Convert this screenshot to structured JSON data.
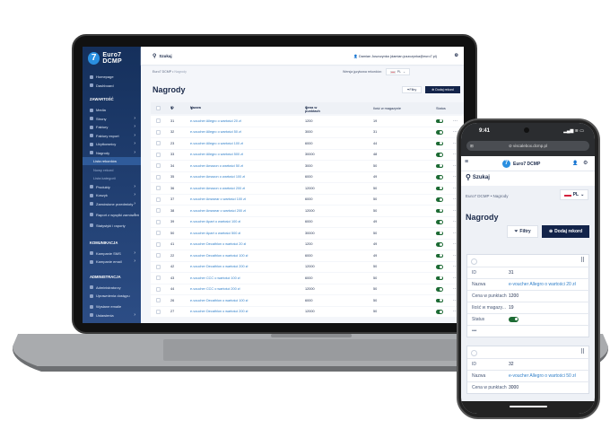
{
  "app": {
    "name": "Euro7 DCMP"
  },
  "sidebar": {
    "top": [
      {
        "label": "Homepage"
      },
      {
        "label": "Dashboard"
      }
    ],
    "sections": [
      {
        "title": "ZAWARTOŚĆ",
        "items": [
          {
            "label": "Media",
            "chevron": false
          },
          {
            "label": "Strony",
            "chevron": true
          },
          {
            "label": "Faktury",
            "chevron": true
          },
          {
            "label": "Faktury export",
            "chevron": true
          },
          {
            "label": "Użytkownicy",
            "chevron": true
          },
          {
            "label": "Nagrody",
            "chevron": true,
            "expanded": true,
            "children": [
              {
                "label": "Lista rekordów",
                "active": true
              },
              {
                "label": "Nowy rekord"
              },
              {
                "label": "Lista kategorii"
              }
            ]
          },
          {
            "label": "Produkty",
            "chevron": true
          },
          {
            "label": "Koszyk",
            "chevron": true
          },
          {
            "label": "Zamówione przedmioty",
            "chevron": true
          },
          {
            "label": "Raport z wysyłki zamówień",
            "chevron": true
          },
          {
            "label": "Statystyki i raporty",
            "chevron": false
          }
        ]
      },
      {
        "title": "KOMUNIKACJA",
        "items": [
          {
            "label": "Kampanie SMS",
            "chevron": true
          },
          {
            "label": "Kampanie email",
            "chevron": true
          }
        ]
      },
      {
        "title": "ADMINISTRACJA",
        "items": [
          {
            "label": "Administratorzy"
          },
          {
            "label": "Uprawnienia dostępu"
          },
          {
            "label": "Wysłane emaile"
          },
          {
            "label": "Ustawienia",
            "chevron": true
          }
        ]
      }
    ]
  },
  "header": {
    "search_label": "Szukaj",
    "user": "Damian Juszczynka (damian.juszczynka@euro7.pl)"
  },
  "breadcrumb": {
    "root": "Euro7 DCMP",
    "current": "Nagrody"
  },
  "language": {
    "label": "Wersja językowa rekordów:",
    "value": "PL"
  },
  "page": {
    "title": "Nagrody",
    "filters_label": "Filtry",
    "add_label": "Dodaj rekord"
  },
  "table": {
    "columns": {
      "id": "ID",
      "name": "Nazwa",
      "price": "Cena w punktach",
      "stock": "Ilość w magazynie",
      "status": "Status"
    },
    "rows": [
      {
        "id": "31",
        "name": "e-voucher Allegro o wartości 20 zł",
        "price": "1200",
        "stock": "19",
        "active": true
      },
      {
        "id": "32",
        "name": "e-voucher Allegro o wartości 50 zł",
        "price": "3000",
        "stock": "31",
        "active": true
      },
      {
        "id": "23",
        "name": "e-voucher Allegro o wartości 100 zł",
        "price": "6000",
        "stock": "44",
        "active": true
      },
      {
        "id": "33",
        "name": "e-voucher Allegro o wartości 500 zł",
        "price": "30000",
        "stock": "48",
        "active": true
      },
      {
        "id": "34",
        "name": "e-voucher Amazon o wartości 50 zł",
        "price": "3000",
        "stock": "50",
        "active": true
      },
      {
        "id": "35",
        "name": "e-voucher Amazon o wartości 100 zł",
        "price": "6000",
        "stock": "49",
        "active": true
      },
      {
        "id": "36",
        "name": "e-voucher Amazon o wartości 200 zł",
        "price": "12000",
        "stock": "50",
        "active": true
      },
      {
        "id": "37",
        "name": "e-voucher Answear o wartości 100 zł",
        "price": "6000",
        "stock": "50",
        "active": true
      },
      {
        "id": "38",
        "name": "e-voucher Answear o wartości 200 zł",
        "price": "12000",
        "stock": "50",
        "active": true
      },
      {
        "id": "39",
        "name": "e-voucher Apart o wartości 100 zł",
        "price": "6000",
        "stock": "49",
        "active": true
      },
      {
        "id": "50",
        "name": "e-voucher Apart o wartości 500 zł",
        "price": "30000",
        "stock": "50",
        "active": true
      },
      {
        "id": "41",
        "name": "e-voucher Decathlon o wartości 20 zł",
        "price": "1200",
        "stock": "49",
        "active": true
      },
      {
        "id": "22",
        "name": "e-voucher Decathlon o wartości 100 zł",
        "price": "6000",
        "stock": "49",
        "active": true
      },
      {
        "id": "42",
        "name": "e-voucher Decathlon o wartości 200 zł",
        "price": "12000",
        "stock": "50",
        "active": true
      },
      {
        "id": "43",
        "name": "e-voucher CCC o wartości 100 zł",
        "price": "6000",
        "stock": "50",
        "active": true
      },
      {
        "id": "44",
        "name": "e-voucher CCC o wartości 200 zł",
        "price": "12000",
        "stock": "50",
        "active": true
      },
      {
        "id": "26",
        "name": "e-voucher Decathlon o wartości 100 zł",
        "price": "6000",
        "stock": "50",
        "active": true
      },
      {
        "id": "27",
        "name": "e-voucher Decathlon o wartości 200 zł",
        "price": "12000",
        "stock": "50",
        "active": true
      }
    ]
  },
  "phone": {
    "time": "9:41",
    "url": "viscalebox.dcmp.pl",
    "card_labels": {
      "id": "ID",
      "name": "Nazwa",
      "price": "Cena w punktach",
      "stock": "Ilość w magazy...",
      "status": "Status",
      "more": "•••"
    },
    "cards": [
      {
        "id": "31",
        "name": "e-voucher Allegro o wartości 20 zł",
        "price": "1200",
        "stock": "19"
      },
      {
        "id": "32",
        "name": "e-voucher Allegro o wartości 50 zł",
        "price": "3000"
      }
    ]
  },
  "colors": {
    "sidebar": "#1b3a6b",
    "accent": "#2a8fe0",
    "primary_button": "#13244a",
    "toggle_on": "#1d6b34",
    "link": "#2f7fc9"
  }
}
